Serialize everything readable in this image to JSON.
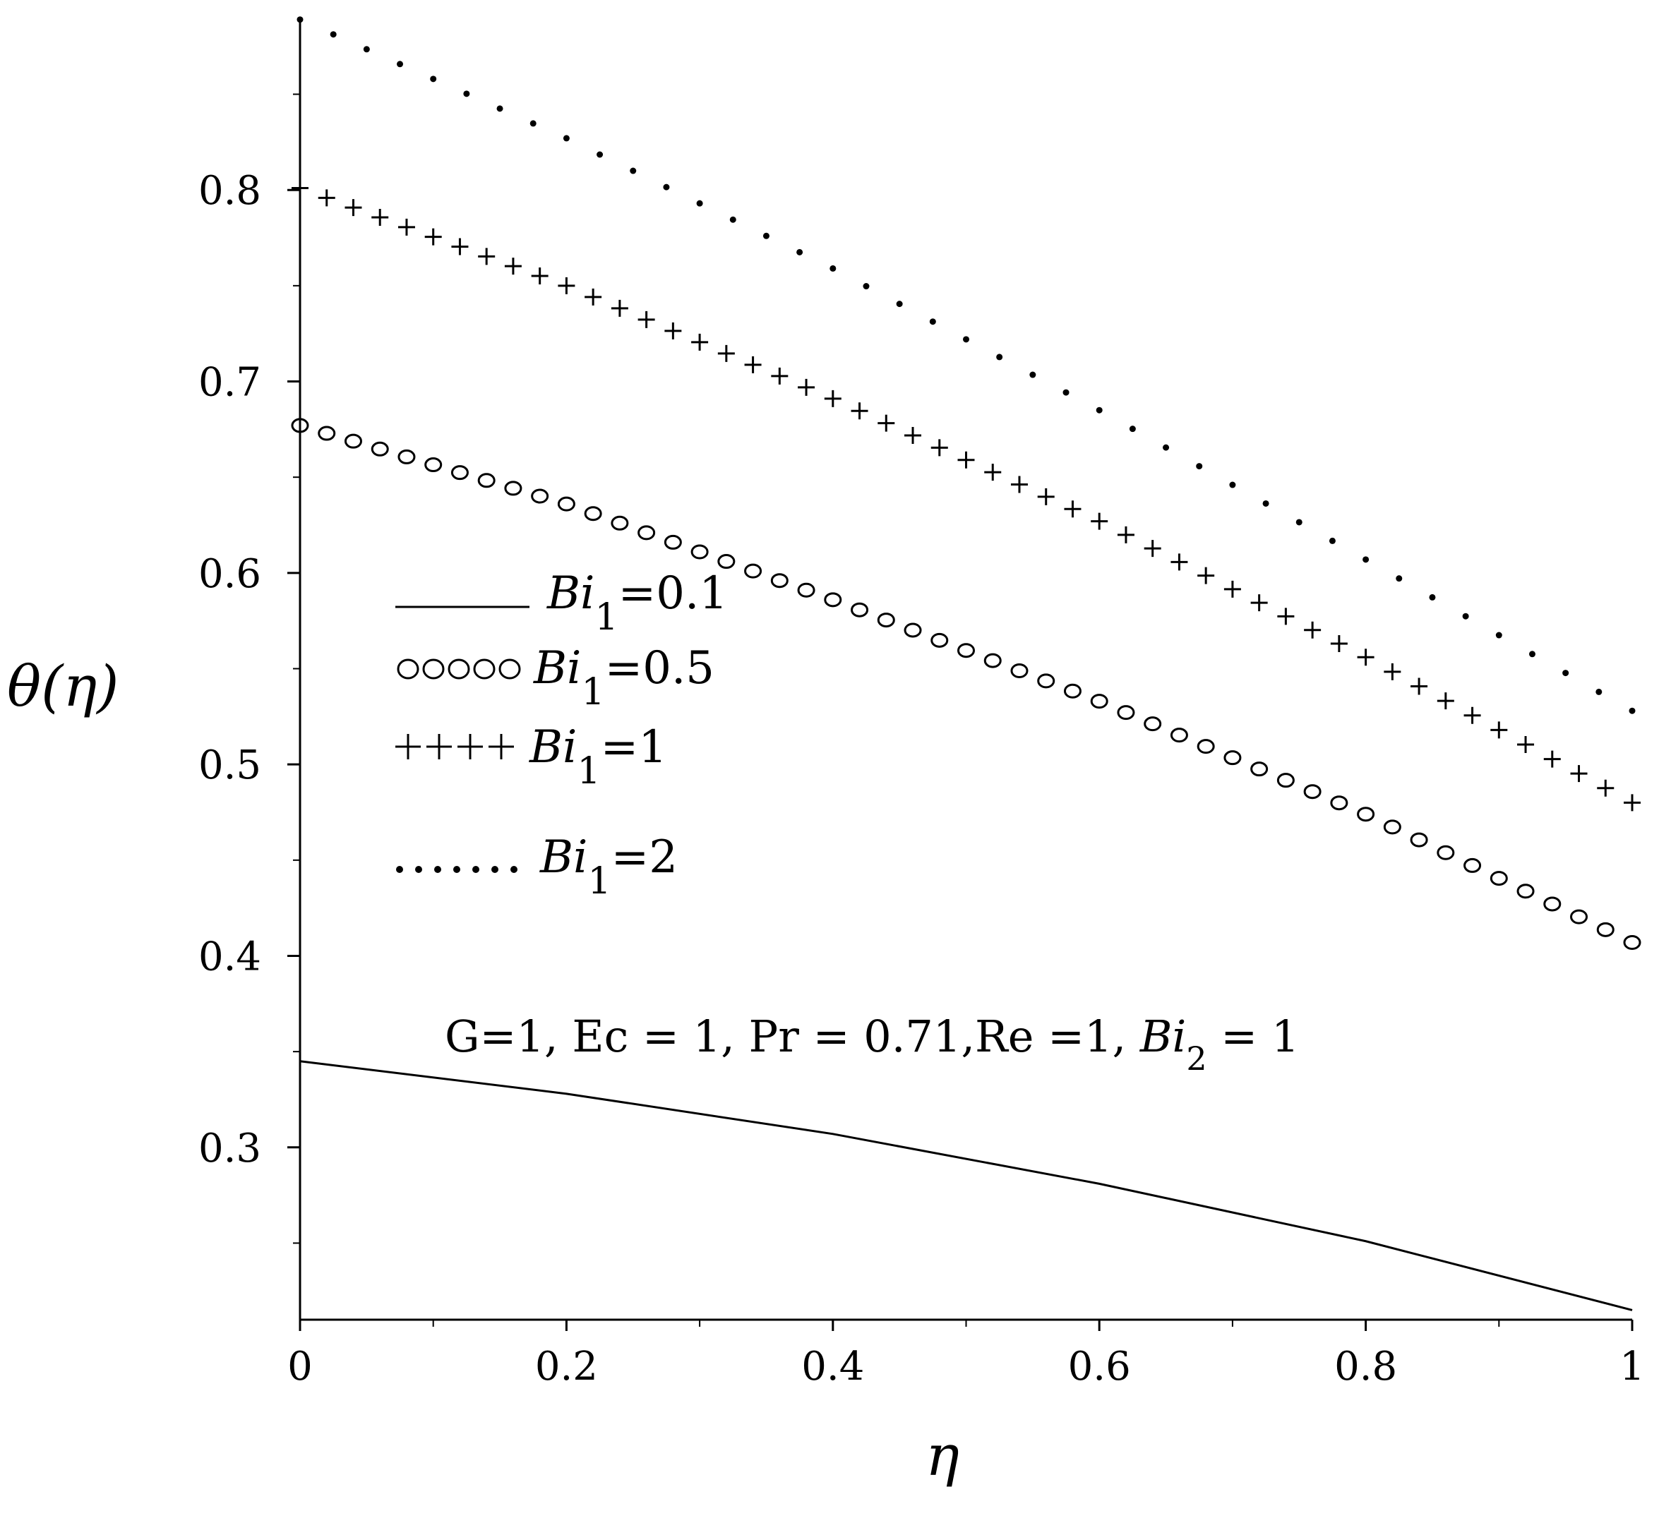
{
  "chart_data": {
    "type": "line",
    "xlabel": "η",
    "ylabel": "θ(η)",
    "xlim": [
      0,
      1
    ],
    "ylim": [
      0.21,
      0.89
    ],
    "x_ticks": [
      0,
      0.2,
      0.4,
      0.6,
      0.8,
      1
    ],
    "x_tick_labels": [
      "0",
      "0.2",
      "0.4",
      "0.6",
      "0.8",
      "1"
    ],
    "y_ticks": [
      0.3,
      0.4,
      0.5,
      0.6,
      0.7,
      0.8
    ],
    "y_tick_labels": [
      "0.3",
      "0.4",
      "0.5",
      "0.6",
      "0.7",
      "0.8"
    ],
    "grid": false,
    "legend_position": "center-left",
    "series": [
      {
        "name": "Bi1=0.1",
        "style": "solid",
        "legend_marker": "______",
        "legend_label": "Bi",
        "legend_sub": "1",
        "legend_value": "=0.1",
        "x": [
          0,
          0.2,
          0.4,
          0.6,
          0.8,
          1
        ],
        "y": [
          0.345,
          0.328,
          0.307,
          0.281,
          0.251,
          0.215
        ]
      },
      {
        "name": "Bi1=0.5",
        "style": "circles",
        "legend_marker": "ooooo",
        "legend_label": "Bi",
        "legend_sub": "1",
        "legend_value": "=0.5",
        "x": [
          0,
          0.2,
          0.4,
          0.6,
          0.8,
          1
        ],
        "y": [
          0.677,
          0.636,
          0.586,
          0.533,
          0.474,
          0.407
        ]
      },
      {
        "name": "Bi1=1",
        "style": "plus",
        "legend_marker": "++++",
        "legend_label": "Bi",
        "legend_sub": "1",
        "legend_value": "=1",
        "x": [
          0,
          0.2,
          0.4,
          0.6,
          0.8,
          1
        ],
        "y": [
          0.801,
          0.75,
          0.691,
          0.627,
          0.556,
          0.48
        ]
      },
      {
        "name": "Bi1=2",
        "style": "dotted",
        "legend_marker": "......",
        "legend_label": "Bi",
        "legend_sub": "1",
        "legend_value": "=2",
        "x": [
          0,
          0.2,
          0.4,
          0.6,
          0.8,
          1
        ],
        "y": [
          0.889,
          0.827,
          0.759,
          0.685,
          0.607,
          0.528
        ]
      }
    ],
    "annotation": {
      "prefix": "G=1, Ec = 1, Pr = 0.71,Re =1, ",
      "label": "Bi",
      "sub": "2",
      "suffix": " = 1"
    }
  }
}
